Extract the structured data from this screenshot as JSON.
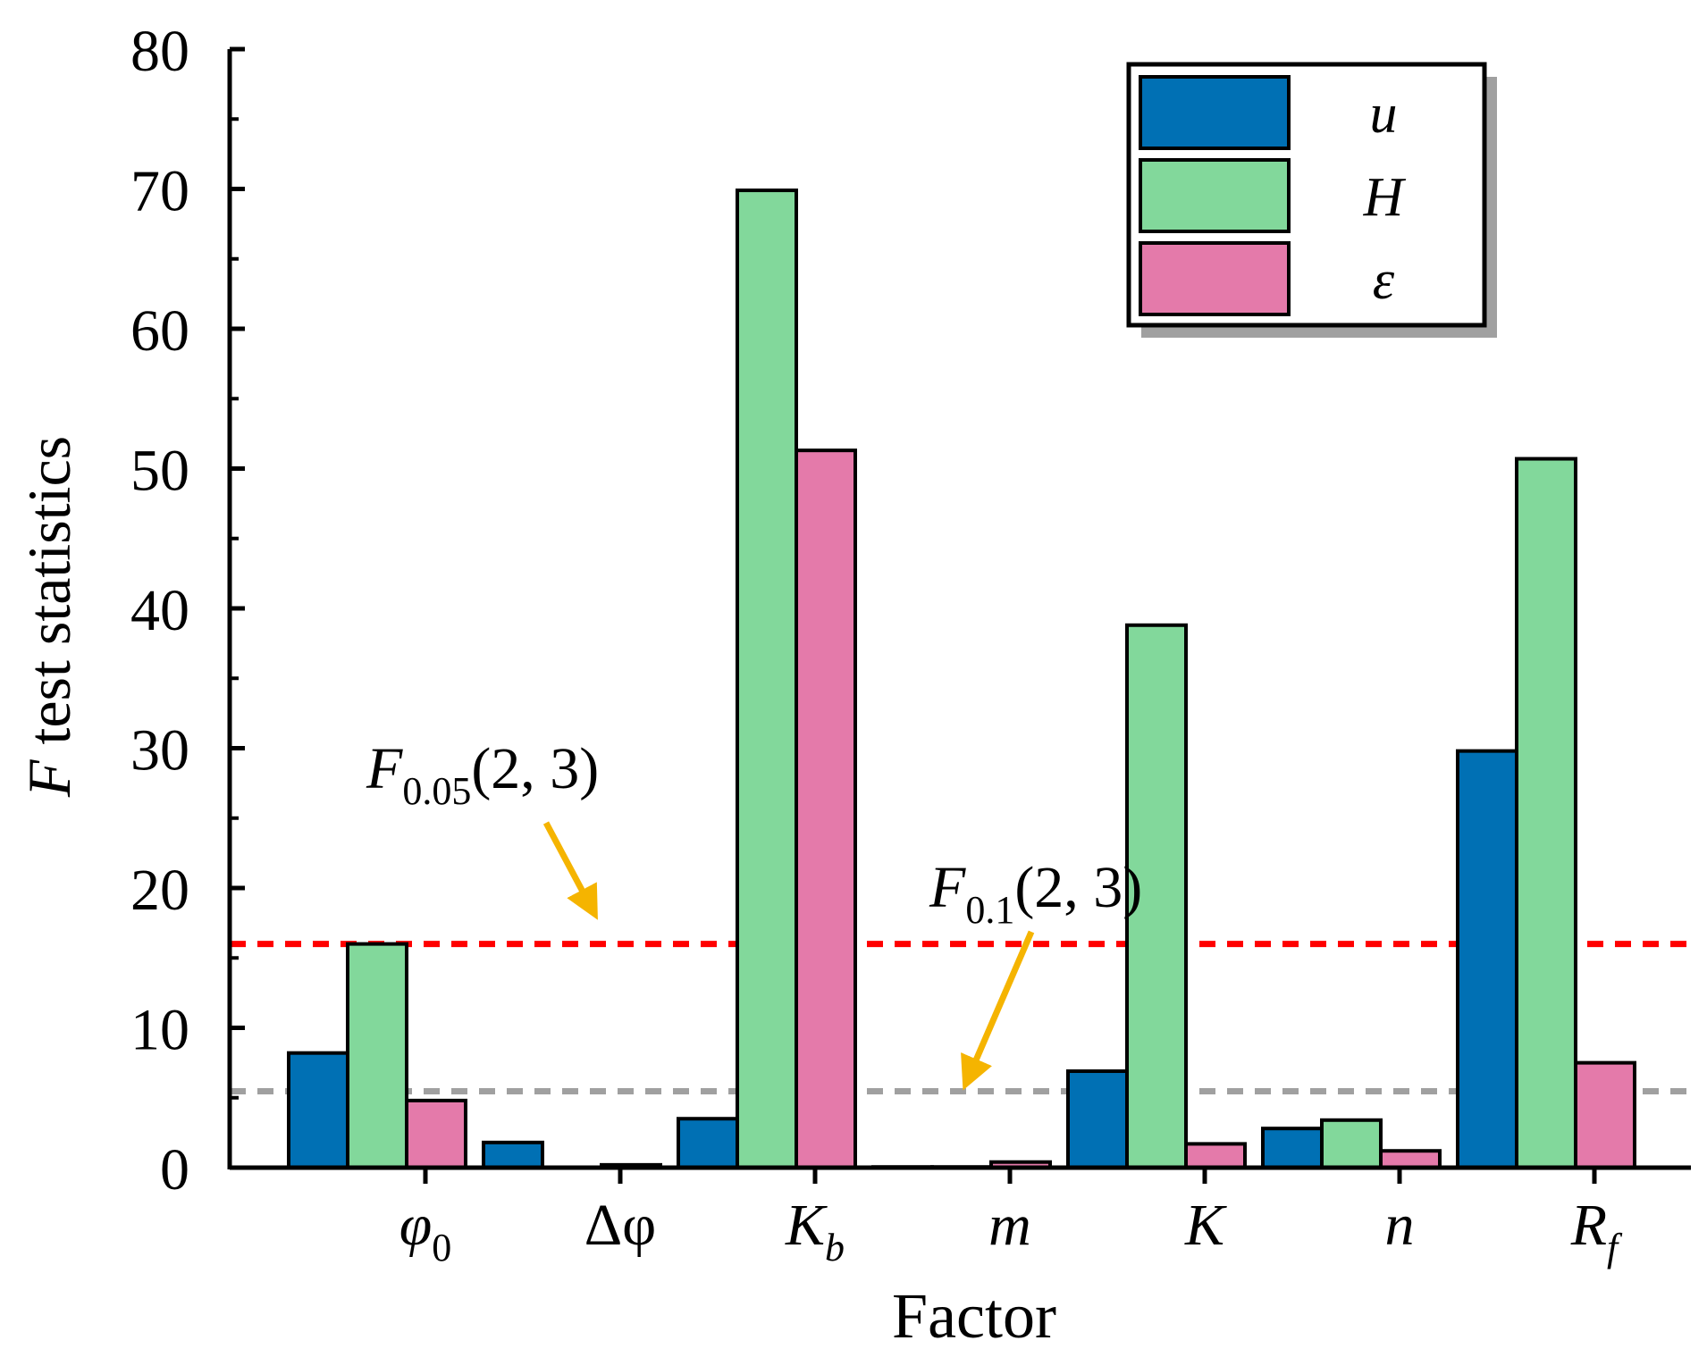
{
  "chart_data": {
    "type": "bar",
    "title": "",
    "xlabel": "Factor",
    "ylabel": {
      "italic": "F",
      "rest": " test statistics"
    },
    "ylim": [
      0,
      80
    ],
    "yticks": [
      0,
      10,
      20,
      30,
      40,
      50,
      60,
      70,
      80
    ],
    "categories": [
      {
        "base": "φ",
        "sub": "0",
        "italic_base": true,
        "italic_sub": false
      },
      {
        "base": "Δφ",
        "sub": "",
        "italic_base": false,
        "italic_sub": false
      },
      {
        "base": "K",
        "sub": "b",
        "italic_base": true,
        "italic_sub": true
      },
      {
        "base": "m",
        "sub": "",
        "italic_base": true,
        "italic_sub": false
      },
      {
        "base": "K",
        "sub": "",
        "italic_base": true,
        "italic_sub": false
      },
      {
        "base": "n",
        "sub": "",
        "italic_base": true,
        "italic_sub": false
      },
      {
        "base": "R",
        "sub": "f",
        "italic_base": true,
        "italic_sub": true
      }
    ],
    "series": [
      {
        "name": "u",
        "color": "#0070b4",
        "values": [
          8.2,
          1.8,
          3.5,
          0.05,
          6.9,
          2.8,
          29.8
        ]
      },
      {
        "name": "H",
        "color": "#82d89b",
        "values": [
          16.0,
          0.0,
          69.9,
          0.05,
          38.8,
          3.4,
          50.7
        ]
      },
      {
        "name": "ε",
        "color": "#e47aaa",
        "values": [
          4.8,
          0.2,
          51.3,
          0.4,
          1.7,
          1.2,
          7.5
        ]
      }
    ],
    "reference_lines": [
      {
        "name": "F0.05(2, 3)",
        "value": 16.0,
        "color": "#ff0000",
        "label_base": "F",
        "label_sub": "0.05",
        "label_rest": "(2, 3)"
      },
      {
        "name": "F0.1(2, 3)",
        "value": 5.46,
        "color": "#a0a0a0",
        "label_base": "F",
        "label_sub": "0.1",
        "label_rest": "(2, 3)"
      }
    ],
    "annotation_arrow_color": "#f5b400",
    "legend_position": "top-right"
  }
}
